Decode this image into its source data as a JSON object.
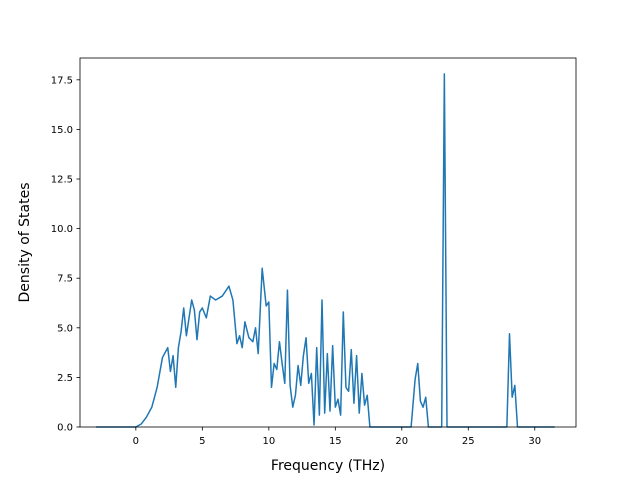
{
  "chart_data": {
    "type": "line",
    "title": "",
    "xlabel": "Frequency (THz)",
    "ylabel": "Density of States",
    "xlim": [
      -4.2,
      33.1
    ],
    "ylim": [
      0,
      18.6
    ],
    "grid": false,
    "xticks": [
      0,
      5,
      10,
      15,
      20,
      25,
      30
    ],
    "xtick_labels": [
      "0",
      "5",
      "10",
      "15",
      "20",
      "25",
      "30"
    ],
    "yticks": [
      0,
      2.5,
      5,
      7.5,
      10,
      12.5,
      15,
      17.5
    ],
    "ytick_labels": [
      "0.0",
      "2.5",
      "5.0",
      "7.5",
      "10.0",
      "12.5",
      "15.0",
      "17.5"
    ],
    "line_color": "#1f77b4",
    "series": [
      {
        "x": [
          -3.0,
          0.0,
          0.4,
          0.8,
          1.2,
          1.6,
          2.0,
          2.4,
          2.6,
          2.8,
          3.0,
          3.2,
          3.4,
          3.6,
          3.8,
          4.0,
          4.2,
          4.4,
          4.6,
          4.8,
          5.0,
          5.3,
          5.6,
          6.0,
          6.5,
          7.0,
          7.3,
          7.6,
          7.8,
          8.0,
          8.2,
          8.5,
          8.8,
          9.0,
          9.2,
          9.5,
          9.8,
          10.0,
          10.2,
          10.4,
          10.6,
          10.8,
          11.0,
          11.2,
          11.4,
          11.6,
          11.8,
          12.0,
          12.2,
          12.4,
          12.6,
          12.8,
          13.0,
          13.2,
          13.4,
          13.6,
          13.8,
          14.0,
          14.2,
          14.4,
          14.6,
          14.8,
          15.0,
          15.2,
          15.4,
          15.6,
          15.8,
          16.0,
          16.2,
          16.4,
          16.6,
          16.8,
          17.0,
          17.2,
          17.4,
          17.6,
          17.8,
          20.7,
          21.0,
          21.2,
          21.4,
          21.6,
          21.8,
          22.0,
          22.2,
          22.5,
          23.0,
          23.2,
          23.4,
          23.6,
          27.9,
          28.1,
          28.3,
          28.5,
          28.7,
          28.9,
          29.2,
          31.5
        ],
        "y": [
          0,
          0,
          0.15,
          0.5,
          1.0,
          2.0,
          3.5,
          4.0,
          2.8,
          3.6,
          2.0,
          4.0,
          4.8,
          6.0,
          4.6,
          5.5,
          6.4,
          5.9,
          4.4,
          5.8,
          6.0,
          5.5,
          6.6,
          6.4,
          6.6,
          7.1,
          6.4,
          4.2,
          4.6,
          4.0,
          5.3,
          4.5,
          4.3,
          5.0,
          3.7,
          8.0,
          6.1,
          6.3,
          2.0,
          3.2,
          2.9,
          4.3,
          3.2,
          2.2,
          6.9,
          2.1,
          1.0,
          1.6,
          3.1,
          2.1,
          3.6,
          4.5,
          2.2,
          2.7,
          0.1,
          4.0,
          0.6,
          6.4,
          0.7,
          3.7,
          0.8,
          4.1,
          1.0,
          1.4,
          0.6,
          5.8,
          2.0,
          1.8,
          3.9,
          1.2,
          3.6,
          0.7,
          2.7,
          1.1,
          1.6,
          0.0,
          0,
          0,
          2.4,
          3.2,
          1.3,
          1.0,
          1.5,
          0.0,
          0,
          0,
          0,
          17.8,
          0,
          0,
          0,
          4.7,
          1.5,
          2.1,
          0.0,
          0,
          0,
          0
        ]
      }
    ]
  }
}
